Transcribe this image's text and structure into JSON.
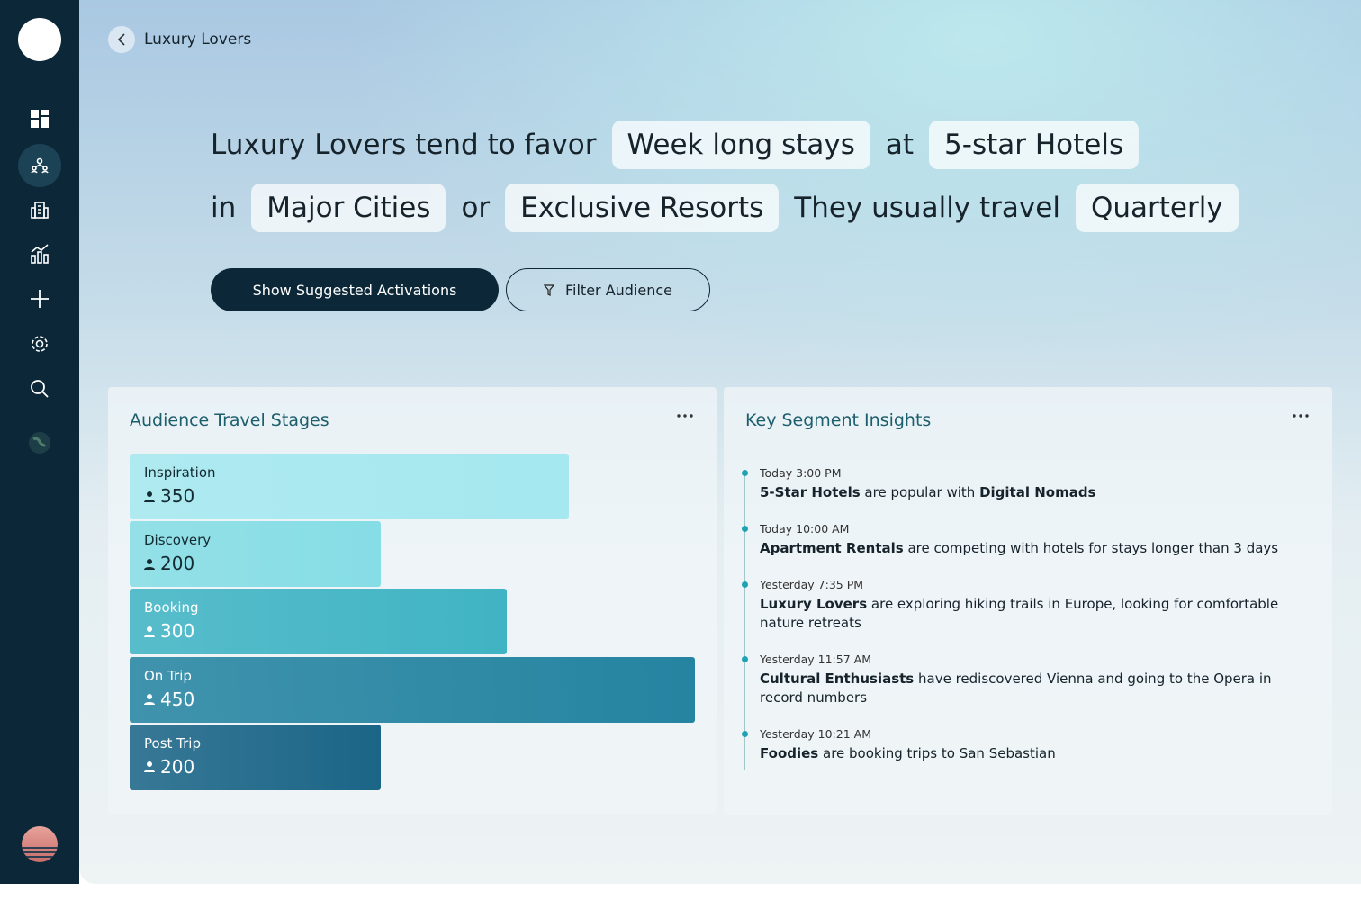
{
  "header": {
    "title": "Luxury Lovers"
  },
  "summary": {
    "lines": [
      [
        {
          "kind": "text",
          "text": "Luxury Lovers tend to favor"
        },
        {
          "kind": "tag",
          "text": "Week long stays"
        },
        {
          "kind": "text",
          "text": "at"
        },
        {
          "kind": "tag",
          "text": "5-star Hotels"
        }
      ],
      [
        {
          "kind": "text",
          "text": "in"
        },
        {
          "kind": "tag",
          "text": "Major Cities"
        },
        {
          "kind": "text",
          "text": "or"
        },
        {
          "kind": "tag",
          "text": "Exclusive Resorts"
        },
        {
          "kind": "text",
          "text": "They usually travel"
        },
        {
          "kind": "tag",
          "text": "Quarterly"
        }
      ]
    ]
  },
  "buttons": {
    "primary": "Show Suggested Activations",
    "secondary": "Filter Audience"
  },
  "stages_panel": {
    "title": "Audience Travel Stages",
    "max": 450,
    "stages": [
      {
        "name": "Inspiration",
        "value": 350,
        "color": "#a5e8ef"
      },
      {
        "name": "Discovery",
        "value": 200,
        "color": "#86dde5"
      },
      {
        "name": "Booking",
        "value": 300,
        "color": "#40b4c4"
      },
      {
        "name": "On Trip",
        "value": 450,
        "color": "#2584a1"
      },
      {
        "name": "Post Trip",
        "value": 200,
        "color": "#1b6587"
      }
    ]
  },
  "insights_panel": {
    "title": "Key Segment Insights",
    "items": [
      {
        "time": "Today 3:00 PM",
        "parts": [
          {
            "text": "5-Star Hotels",
            "bold": true
          },
          {
            "text": " are popular with ",
            "bold": false
          },
          {
            "text": "Digital Nomads",
            "bold": true
          }
        ]
      },
      {
        "time": "Today 10:00 AM",
        "parts": [
          {
            "text": "Apartment Rentals",
            "bold": true
          },
          {
            "text": " are competing with hotels for stays longer than 3 days",
            "bold": false
          }
        ]
      },
      {
        "time": "Yesterday 7:35 PM",
        "parts": [
          {
            "text": "Luxury Lovers",
            "bold": true
          },
          {
            "text": " are exploring hiking trails in Europe, looking for comfortable nature retreats",
            "bold": false
          }
        ]
      },
      {
        "time": "Yesterday 11:57 AM",
        "parts": [
          {
            "text": "Cultural Enthusiasts",
            "bold": true
          },
          {
            "text": " have rediscovered Vienna and going to the Opera in record numbers",
            "bold": false
          }
        ]
      },
      {
        "time": "Yesterday 10:21 AM",
        "parts": [
          {
            "text": "Foodies",
            "bold": true
          },
          {
            "text": " are booking trips to San Sebastian",
            "bold": false
          }
        ]
      }
    ]
  }
}
